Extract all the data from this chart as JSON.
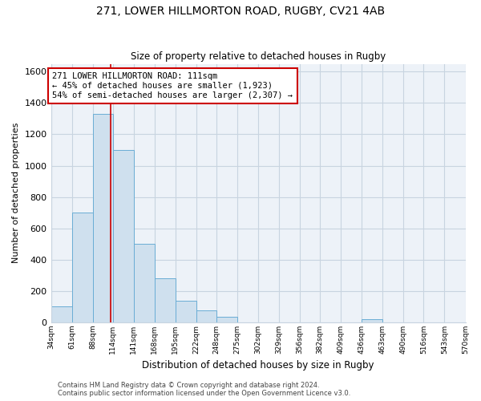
{
  "title": "271, LOWER HILLMORTON ROAD, RUGBY, CV21 4AB",
  "subtitle": "Size of property relative to detached houses in Rugby",
  "xlabel": "Distribution of detached houses by size in Rugby",
  "ylabel": "Number of detached properties",
  "footer_line1": "Contains HM Land Registry data © Crown copyright and database right 2024.",
  "footer_line2": "Contains public sector information licensed under the Open Government Licence v3.0.",
  "annotation_line1": "271 LOWER HILLMORTON ROAD: 111sqm",
  "annotation_line2": "← 45% of detached houses are smaller (1,923)",
  "annotation_line3": "54% of semi-detached houses are larger (2,307) →",
  "bar_edges": [
    34,
    61,
    88,
    114,
    141,
    168,
    195,
    222,
    248,
    275,
    302,
    329,
    356,
    382,
    409,
    436,
    463,
    490,
    516,
    543,
    570
  ],
  "bar_heights": [
    100,
    700,
    1330,
    1100,
    500,
    280,
    140,
    75,
    35,
    0,
    0,
    0,
    0,
    0,
    0,
    18,
    0,
    0,
    0,
    0
  ],
  "property_line_x": 111,
  "bar_color": "#cfe0ee",
  "bar_edge_color": "#6aadd5",
  "property_line_color": "#cc0000",
  "annotation_box_edge_color": "#cc0000",
  "background_color": "#ffffff",
  "grid_color": "#c8d4e0",
  "plot_bg_color": "#edf2f8",
  "ylim": [
    0,
    1650
  ],
  "yticks": [
    0,
    200,
    400,
    600,
    800,
    1000,
    1200,
    1400,
    1600
  ],
  "tick_labels": [
    "34sqm",
    "61sqm",
    "88sqm",
    "114sqm",
    "141sqm",
    "168sqm",
    "195sqm",
    "222sqm",
    "248sqm",
    "275sqm",
    "302sqm",
    "329sqm",
    "356sqm",
    "382sqm",
    "409sqm",
    "436sqm",
    "463sqm",
    "490sqm",
    "516sqm",
    "543sqm",
    "570sqm"
  ]
}
